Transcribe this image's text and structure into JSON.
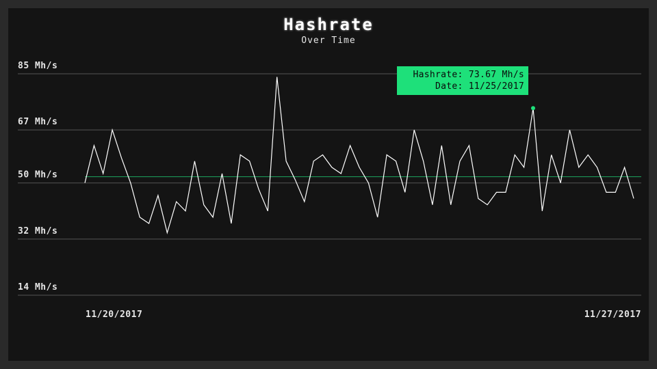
{
  "colors": {
    "background": "#141414",
    "line": "#ffffff",
    "grid": "#555555",
    "average": "#1ea860",
    "accent": "#1ee07a"
  },
  "tooltip": {
    "hashrate_text": "Hashrate: 73.67 Mh/s",
    "date_text": "Date: 11/25/2017"
  },
  "chart_data": {
    "type": "line",
    "title": "Hashrate",
    "subtitle": "Over Time",
    "ylim": [
      14,
      85
    ],
    "yticks": [
      85,
      67,
      50,
      32,
      14
    ],
    "ytick_labels": [
      "85 Mh/s",
      "67 Mh/s",
      "50 Mh/s",
      "32 Mh/s",
      "14 Mh/s"
    ],
    "xtick_labels": [
      "11/20/2017",
      "11/27/2017"
    ],
    "average": 52,
    "highlight_index": 49,
    "series": [
      {
        "name": "Hashrate",
        "values": [
          50,
          62,
          53,
          67,
          58,
          50,
          39,
          37,
          46,
          34,
          44,
          41,
          57,
          43,
          39,
          53,
          37,
          59,
          57,
          48,
          41,
          84,
          57,
          51,
          44,
          57,
          59,
          55,
          53,
          62,
          55,
          50,
          39,
          59,
          57,
          47,
          67,
          57,
          43,
          62,
          43,
          57,
          62,
          45,
          43,
          47,
          47,
          59,
          55,
          74,
          41,
          59,
          50,
          67,
          55,
          59,
          55,
          47,
          47,
          55,
          45
        ]
      }
    ]
  }
}
